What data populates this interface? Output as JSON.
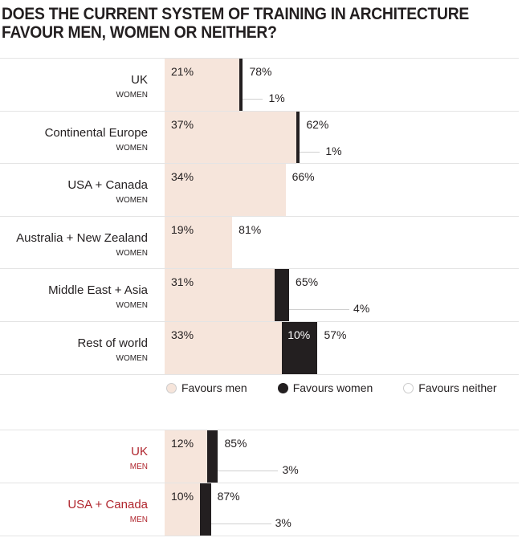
{
  "chart_data": {
    "type": "bar",
    "orientation": "horizontal-stacked",
    "title": "DOES THE CURRENT SYSTEM OF TRAINING IN ARCHITECTURE FAVOUR MEN, WOMEN OR NEITHER?",
    "xlim": [
      0,
      100
    ],
    "colors": {
      "men": "#f6e5db",
      "women": "#231f20",
      "neither": "#ffffff",
      "men_label": "#b0262e"
    },
    "legend": [
      "Favours men",
      "Favours women",
      "Favours neither"
    ],
    "groups": [
      {
        "rows": [
          {
            "category": "UK",
            "group": "WOMEN",
            "men": 21,
            "women": 1,
            "neither": 78
          },
          {
            "category": "Continental Europe",
            "group": "WOMEN",
            "men": 37,
            "women": 1,
            "neither": 62
          },
          {
            "category": "USA + Canada",
            "group": "WOMEN",
            "men": 34,
            "women": 0,
            "neither": 66
          },
          {
            "category": "Australia + New Zealand",
            "group": "WOMEN",
            "men": 19,
            "women": 0,
            "neither": 81
          },
          {
            "category": "Middle East + Asia",
            "group": "WOMEN",
            "men": 31,
            "women": 4,
            "neither": 65
          },
          {
            "category": "Rest of world",
            "group": "WOMEN",
            "men": 33,
            "women": 10,
            "neither": 57
          }
        ]
      },
      {
        "rows": [
          {
            "category": "UK",
            "group": "MEN",
            "men": 12,
            "women": 3,
            "neither": 85
          },
          {
            "category": "USA + Canada",
            "group": "MEN",
            "men": 10,
            "women": 3,
            "neither": 87
          }
        ]
      }
    ]
  }
}
